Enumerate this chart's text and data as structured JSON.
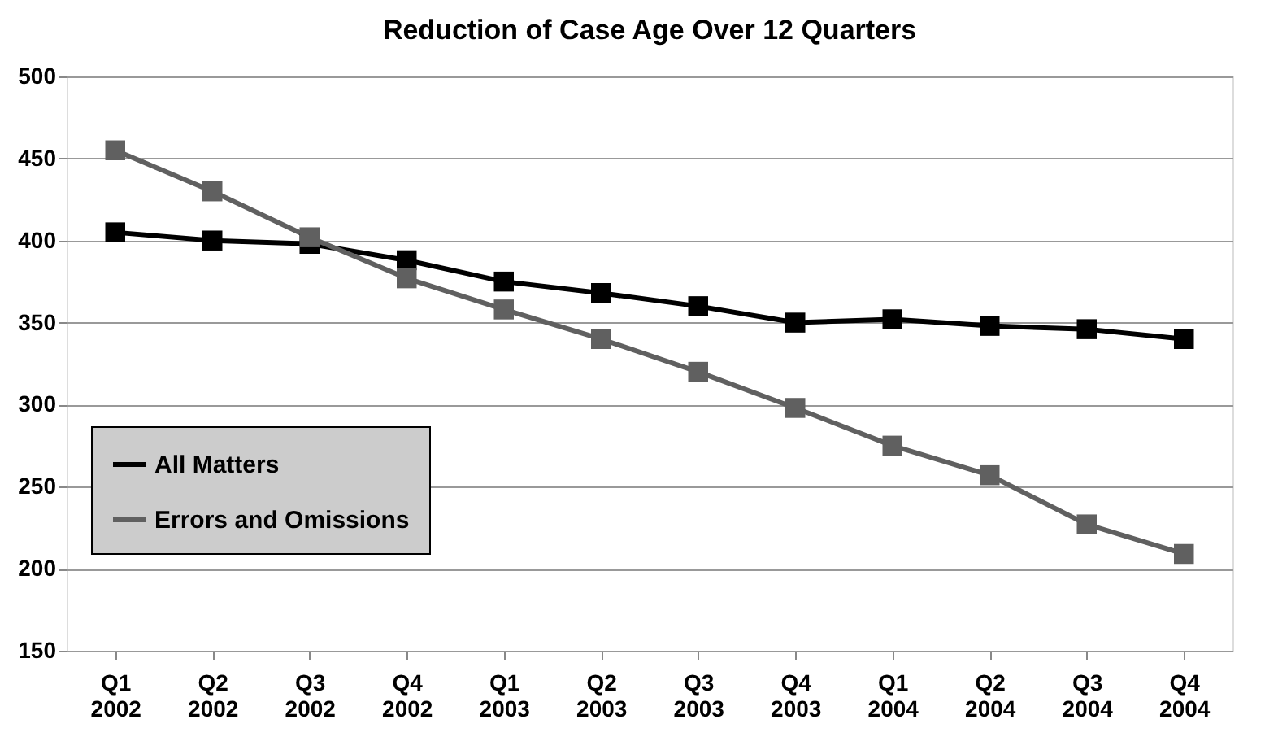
{
  "chart_data": {
    "type": "line",
    "title": "Reduction of Case Age Over 12 Quarters",
    "categories": [
      "Q1 2002",
      "Q2 2002",
      "Q3 2002",
      "Q4 2002",
      "Q1 2003",
      "Q2 2003",
      "Q3 2003",
      "Q4 2003",
      "Q1 2004",
      "Q2 2004",
      "Q3 2004",
      "Q4 2004"
    ],
    "series": [
      {
        "name": "All Matters",
        "color": "#000000",
        "values": [
          405,
          400,
          398,
          388,
          375,
          368,
          360,
          350,
          352,
          348,
          346,
          340
        ]
      },
      {
        "name": "Errors and Omissions",
        "color": "#606060",
        "values": [
          455,
          430,
          402,
          377,
          358,
          340,
          320,
          298,
          275,
          257,
          227,
          209
        ]
      }
    ],
    "ylim": [
      150,
      500
    ],
    "yticks": [
      150,
      200,
      250,
      300,
      350,
      400,
      450,
      500
    ],
    "grid": "y",
    "legend": "left",
    "marker": "square",
    "line_style": "solid"
  }
}
